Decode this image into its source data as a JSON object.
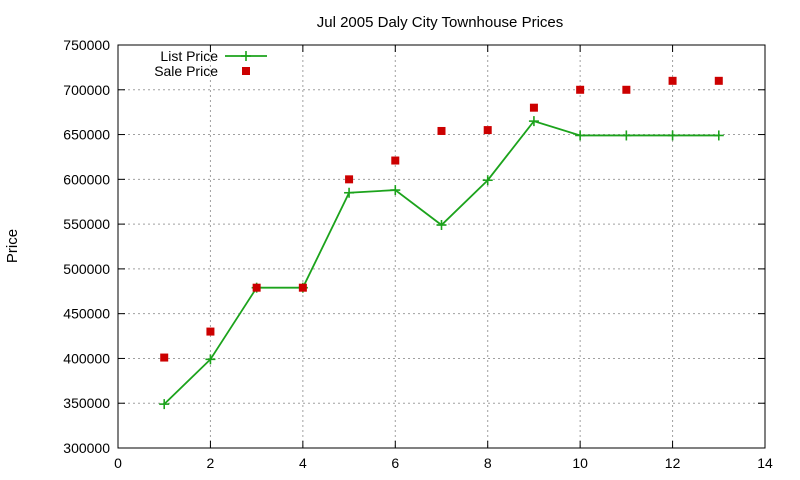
{
  "chart_data": {
    "type": "line",
    "title": "Jul 2005 Daly City Townhouse Prices",
    "xlabel": "",
    "ylabel": "Price",
    "xlim": [
      0,
      14
    ],
    "ylim": [
      300000,
      750000
    ],
    "xticks": [
      0,
      2,
      4,
      6,
      8,
      10,
      12,
      14
    ],
    "yticks": [
      300000,
      350000,
      400000,
      450000,
      500000,
      550000,
      600000,
      650000,
      700000,
      750000
    ],
    "grid": true,
    "legend_position": "top-left",
    "series": [
      {
        "name": "List Price",
        "style": "line+plus",
        "color": "#1ca31c",
        "x": [
          1,
          2,
          3,
          4,
          5,
          6,
          7,
          8,
          9,
          10,
          11,
          12,
          13
        ],
        "y": [
          349000,
          399000,
          479000,
          479000,
          585000,
          588000,
          549000,
          599000,
          665000,
          649000,
          649000,
          649000,
          649000
        ]
      },
      {
        "name": "Sale Price",
        "style": "square",
        "color": "#cc0000",
        "x": [
          1,
          2,
          3,
          4,
          5,
          6,
          7,
          8,
          9,
          10,
          11,
          12,
          13
        ],
        "y": [
          401000,
          430000,
          479000,
          479000,
          600000,
          621000,
          654000,
          655000,
          680000,
          700000,
          700000,
          710000,
          710000
        ]
      }
    ]
  }
}
